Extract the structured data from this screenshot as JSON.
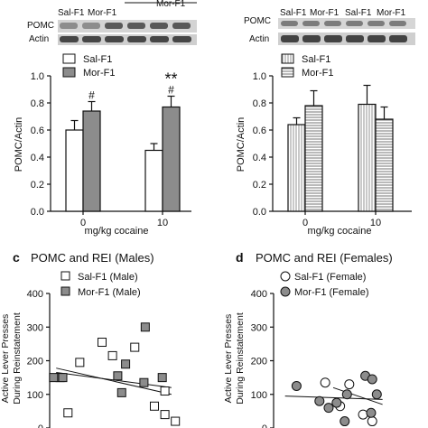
{
  "top_blots": {
    "left": {
      "groups": [
        "Sal-F1",
        "Mor-F1"
      ],
      "group_top_labels": [
        "",
        "Mor-F1"
      ],
      "rows": [
        "POMC",
        "Actin"
      ]
    },
    "right": {
      "groups": [
        "Sal-F1",
        "Mor-F1",
        "Sal-F1",
        "Mor-F1"
      ],
      "rows": [
        "POMC",
        "Actin"
      ]
    }
  },
  "chart_data": [
    {
      "id": "males_bar",
      "type": "bar",
      "categories": [
        "0",
        "10"
      ],
      "series": [
        {
          "name": "Sal-F1",
          "values": [
            0.6,
            0.45
          ],
          "errors": [
            0.07,
            0.05
          ],
          "color": "#ffffff"
        },
        {
          "name": "Mor-F1",
          "values": [
            0.74,
            0.77
          ],
          "errors": [
            0.07,
            0.08
          ],
          "color": "#8c8c8c"
        }
      ],
      "annotations": [
        {
          "category": "0",
          "series": "Mor-F1",
          "text": "#"
        },
        {
          "category": "10",
          "series": "Mor-F1",
          "text": "#"
        },
        {
          "category": "10",
          "series": "Mor-F1",
          "text": "**"
        }
      ],
      "xlabel": "mg/kg cocaine",
      "ylabel": "POMC/Actin",
      "ylim": [
        0,
        1.0
      ],
      "yticks": [
        "0.0",
        "0.2",
        "0.4",
        "0.6",
        "0.8",
        "1.0"
      ],
      "legend": "top-left"
    },
    {
      "id": "females_bar",
      "type": "bar",
      "categories": [
        "0",
        "10"
      ],
      "series": [
        {
          "name": "Sal-F1",
          "values": [
            0.64,
            0.79
          ],
          "errors": [
            0.05,
            0.14
          ],
          "pattern": "vertical-lines"
        },
        {
          "name": "Mor-F1",
          "values": [
            0.78,
            0.68
          ],
          "errors": [
            0.11,
            0.09
          ],
          "pattern": "horizontal-lines"
        }
      ],
      "xlabel": "mg/kg cocaine",
      "ylabel": "POMC/Actin",
      "ylim": [
        0,
        1.0
      ],
      "yticks": [
        "0.0",
        "0.2",
        "0.4",
        "0.6",
        "0.8",
        "1.0"
      ],
      "legend": "top-left"
    },
    {
      "id": "males_scatter",
      "type": "scatter",
      "panel_letter": "c",
      "title": "POMC and  REI (Males)",
      "ylabel_lines": [
        "Active  Lever  Presses",
        "During Reinstatement"
      ],
      "ylim": [
        0,
        400
      ],
      "yticks": [
        "0",
        "100",
        "200",
        "300",
        "400"
      ],
      "series": [
        {
          "name": "Sal-F1 (Male)",
          "marker": "square-open",
          "points": [
            [
              0.08,
              150
            ],
            [
              0.23,
              195
            ],
            [
              0.4,
              255
            ],
            [
              0.48,
              215
            ],
            [
              0.65,
              240
            ],
            [
              0.88,
              110
            ],
            [
              0.88,
              40
            ],
            [
              0.96,
              20
            ],
            [
              0.14,
              45
            ],
            [
              0.8,
              65
            ]
          ]
        },
        {
          "name": "Mor-F1 (Male)",
          "marker": "square-filled",
          "points": [
            [
              0.03,
              150
            ],
            [
              0.1,
              150
            ],
            [
              0.52,
              155
            ],
            [
              0.58,
              190
            ],
            [
              0.55,
              105
            ],
            [
              0.73,
              300
            ],
            [
              0.72,
              135
            ],
            [
              0.86,
              150
            ]
          ]
        }
      ],
      "fit_lines": [
        {
          "x": [
            0.05,
            0.93
          ],
          "y": [
            165,
            120
          ]
        },
        {
          "x": [
            0.05,
            0.93
          ],
          "y": [
            178,
            100
          ]
        }
      ],
      "legend": "top-right"
    },
    {
      "id": "females_scatter",
      "type": "scatter",
      "panel_letter": "d",
      "title": "POMC and  REI (Females)",
      "ylabel_lines": [
        "Active  Lever  Presses",
        "During Reinstatement"
      ],
      "ylim": [
        0,
        400
      ],
      "yticks": [
        "0",
        "100",
        "200",
        "300",
        "400"
      ],
      "series": [
        {
          "name": "Sal-F1 (Female)",
          "marker": "circle-open",
          "points": [
            [
              0.45,
              135
            ],
            [
              0.58,
              65
            ],
            [
              0.66,
              130
            ],
            [
              0.78,
              40
            ],
            [
              0.86,
              20
            ]
          ]
        },
        {
          "name": "Mor-F1 (Female)",
          "marker": "circle-filled",
          "points": [
            [
              0.2,
              125
            ],
            [
              0.4,
              80
            ],
            [
              0.48,
              60
            ],
            [
              0.55,
              75
            ],
            [
              0.64,
              100
            ],
            [
              0.8,
              155
            ],
            [
              0.86,
              145
            ],
            [
              0.9,
              100
            ],
            [
              0.85,
              45
            ],
            [
              0.62,
              20
            ]
          ]
        }
      ],
      "fit_lines": [
        {
          "x": [
            0.1,
            0.95
          ],
          "y": [
            95,
            85
          ]
        },
        {
          "x": [
            0.52,
            0.95
          ],
          "y": [
            120,
            70
          ]
        }
      ],
      "legend": "top-right"
    }
  ]
}
